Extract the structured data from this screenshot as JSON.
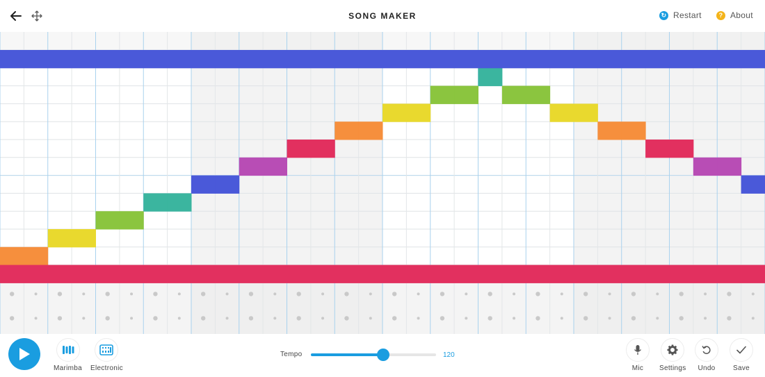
{
  "header": {
    "title": "SONG MAKER",
    "restart_label": "Restart",
    "about_label": "About",
    "colors": {
      "restart": "#1a9de0",
      "about": "#f4b41a"
    }
  },
  "grid": {
    "columns": 32,
    "melody_rows": 13,
    "percussion_rows": 2,
    "beats_per_bar": 4,
    "subdivisions_per_beat": 2,
    "row_colors": [
      "#4a59d9",
      "#3bb59f",
      "#8bc53f",
      "#e9d92e",
      "#f68f3d",
      "#e2305f",
      "#b84db5",
      "#4a59d9",
      "#3bb59f",
      "#8bc53f",
      "#e9d92e",
      "#f68f3d",
      "#e2305f"
    ],
    "full_rows": [
      0,
      12
    ],
    "notes": [
      [
        11,
        0
      ],
      [
        11,
        1
      ],
      [
        10,
        2
      ],
      [
        10,
        3
      ],
      [
        9,
        4
      ],
      [
        9,
        5
      ],
      [
        8,
        6
      ],
      [
        8,
        7
      ],
      [
        7,
        8
      ],
      [
        7,
        9
      ],
      [
        6,
        10
      ],
      [
        6,
        11
      ],
      [
        5,
        12
      ],
      [
        5,
        13
      ],
      [
        4,
        14
      ],
      [
        4,
        15
      ],
      [
        3,
        16
      ],
      [
        3,
        17
      ],
      [
        2,
        18
      ],
      [
        2,
        19
      ],
      [
        1,
        20
      ],
      [
        2,
        21
      ],
      [
        2,
        22
      ],
      [
        3,
        23
      ],
      [
        3,
        24
      ],
      [
        4,
        25
      ],
      [
        4,
        26
      ],
      [
        5,
        27
      ],
      [
        5,
        28
      ],
      [
        6,
        29
      ],
      [
        6,
        30
      ],
      [
        7,
        31
      ]
    ],
    "note_runs": [
      {
        "row": 11,
        "cols": [
          0,
          1
        ]
      },
      {
        "row": 10,
        "cols": [
          2,
          3
        ]
      },
      {
        "row": 9,
        "cols": [
          4,
          5
        ]
      },
      {
        "row": 8,
        "cols": [
          6,
          7
        ]
      },
      {
        "row": 7,
        "cols": [
          8,
          9
        ]
      },
      {
        "row": 6,
        "cols": [
          10,
          11
        ]
      },
      {
        "row": 5,
        "cols": [
          12,
          13
        ]
      },
      {
        "row": 4,
        "cols": [
          14,
          15
        ]
      },
      {
        "row": 3,
        "cols": [
          16,
          17
        ]
      },
      {
        "row": 2,
        "cols": [
          18,
          19
        ]
      },
      {
        "row": 1,
        "cols": [
          20
        ]
      },
      {
        "row": 2,
        "cols": [
          21,
          22
        ]
      },
      {
        "row": 3,
        "cols": [
          23
        ]
      },
      {
        "row": 3,
        "cols": [
          24
        ]
      },
      {
        "row": 4,
        "cols": [
          25,
          26
        ]
      },
      {
        "row": 5,
        "cols": [
          27,
          28
        ]
      },
      {
        "row": 6,
        "cols": [
          29,
          30
        ]
      },
      {
        "row": 7,
        "cols": [
          31
        ]
      }
    ]
  },
  "controls": {
    "instruments": [
      {
        "label": "Marimba",
        "icon": "marimba-icon"
      },
      {
        "label": "Electronic",
        "icon": "electronic-icon"
      }
    ],
    "tempo_label": "Tempo",
    "tempo_value": "120",
    "tempo_fraction": 0.58,
    "tools": [
      {
        "label": "Mic",
        "icon": "mic-icon"
      },
      {
        "label": "Settings",
        "icon": "gear-icon"
      },
      {
        "label": "Undo",
        "icon": "undo-icon"
      },
      {
        "label": "Save",
        "icon": "check-icon"
      }
    ],
    "accent": "#1a9de0"
  }
}
